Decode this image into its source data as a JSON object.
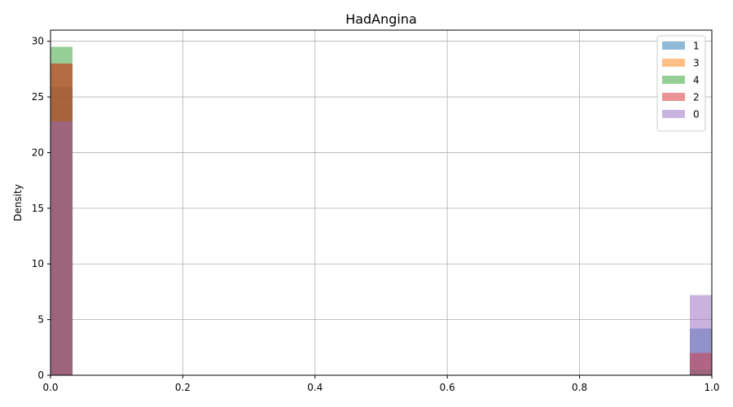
{
  "chart_data": {
    "type": "histogram",
    "title": "HadAngina",
    "xlabel": "",
    "ylabel": "Density",
    "xlim": [
      0,
      1
    ],
    "ylim": [
      0,
      31
    ],
    "xticks": [
      "0.0",
      "0.2",
      "0.4",
      "0.6",
      "0.8",
      "1.0"
    ],
    "xtick_values": [
      0,
      0.2,
      0.4,
      0.6,
      0.8,
      1.0
    ],
    "yticks": [
      "0",
      "5",
      "10",
      "15",
      "20",
      "25",
      "30"
    ],
    "ytick_values": [
      0,
      5,
      10,
      15,
      20,
      25,
      30
    ],
    "grid": true,
    "legend_position": "top-right",
    "bin_width": 0.0333,
    "series": [
      {
        "name": "1",
        "color": "#1f77b4",
        "bins": [
          {
            "x0": 0.0,
            "x1": 0.0333,
            "density": 25.9
          },
          {
            "x0": 0.9667,
            "x1": 1.0,
            "density": 4.2
          }
        ]
      },
      {
        "name": "3",
        "color": "#ff7f0e",
        "bins": [
          {
            "x0": 0.0,
            "x1": 0.0333,
            "density": 28.0
          },
          {
            "x0": 0.9667,
            "x1": 1.0,
            "density": 2.0
          }
        ]
      },
      {
        "name": "4",
        "color": "#2ca02c",
        "bins": [
          {
            "x0": 0.0,
            "x1": 0.0333,
            "density": 29.5
          },
          {
            "x0": 0.9667,
            "x1": 1.0,
            "density": 0.5
          }
        ]
      },
      {
        "name": "2",
        "color": "#d62728",
        "bins": [
          {
            "x0": 0.0,
            "x1": 0.0333,
            "density": 28.0
          },
          {
            "x0": 0.9667,
            "x1": 1.0,
            "density": 2.0
          }
        ]
      },
      {
        "name": "0",
        "color": "#9467bd",
        "bins": [
          {
            "x0": 0.0,
            "x1": 0.0333,
            "density": 22.8
          },
          {
            "x0": 0.9667,
            "x1": 1.0,
            "density": 7.2
          }
        ]
      }
    ]
  }
}
